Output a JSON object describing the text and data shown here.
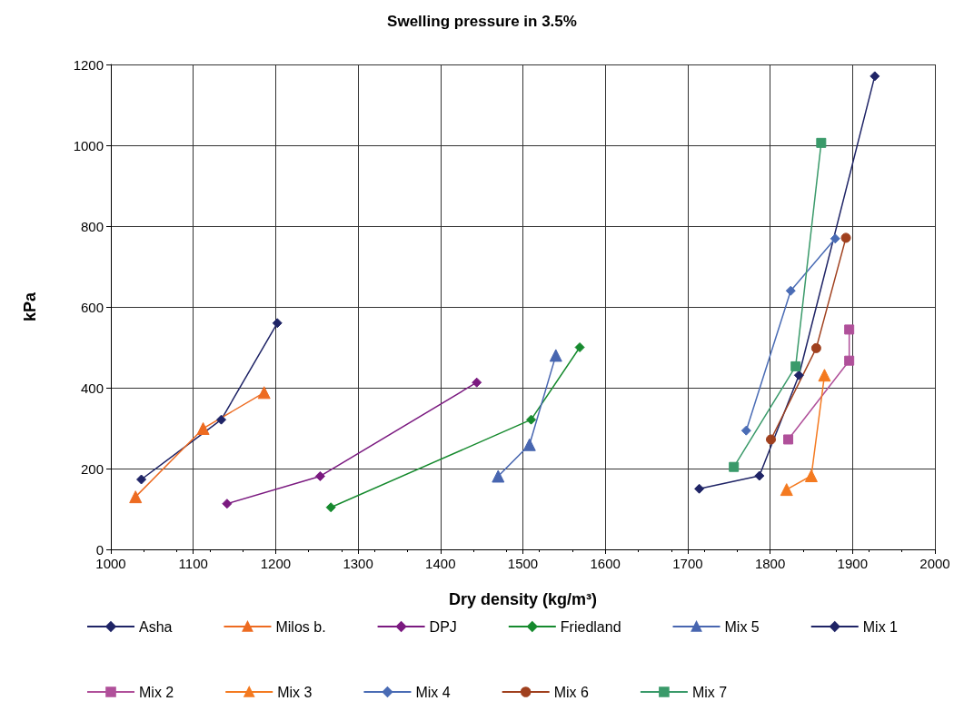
{
  "chart_data": {
    "type": "line",
    "title": "Swelling pressure in 3.5%",
    "xlabel": "Dry density (kg/m³)",
    "ylabel": "kPa",
    "xlim": [
      1000,
      2000
    ],
    "xticks": [
      1000,
      1100,
      1200,
      1300,
      1400,
      1500,
      1600,
      1700,
      1800,
      1900,
      2000
    ],
    "ylim": [
      0,
      1200
    ],
    "yticks": [
      0,
      200,
      400,
      600,
      800,
      1000,
      1200
    ],
    "grid": true,
    "legend": "bottom",
    "line_style": "solid",
    "series": [
      {
        "name": "Asha",
        "color": "#1f2466",
        "marker": "diamond",
        "x": [
          1037,
          1134,
          1202
        ],
        "values": [
          173,
          321,
          560
        ]
      },
      {
        "name": "Milos b.",
        "color": "#ed6b21",
        "marker": "triangle",
        "x": [
          1030,
          1112,
          1186
        ],
        "values": [
          130,
          299,
          388
        ]
      },
      {
        "name": "DPJ",
        "color": "#7b1a80",
        "marker": "diamond",
        "x": [
          1141,
          1254,
          1444
        ],
        "values": [
          113,
          181,
          413
        ]
      },
      {
        "name": "Friedland",
        "color": "#168a2e",
        "marker": "diamond",
        "x": [
          1267,
          1510,
          1569
        ],
        "values": [
          104,
          321,
          500
        ]
      },
      {
        "name": "Mix 5",
        "color": "#4866b0",
        "marker": "triangle",
        "x": [
          1470,
          1508,
          1540
        ],
        "values": [
          181,
          259,
          480
        ]
      },
      {
        "name": "Mix 1",
        "color": "#1f2466",
        "marker": "diamond",
        "x": [
          1714,
          1787,
          1835,
          1927
        ],
        "values": [
          150,
          182,
          431,
          1171
        ]
      },
      {
        "name": "Mix 2",
        "color": "#b0509a",
        "marker": "square",
        "x": [
          1822,
          1896,
          1896
        ],
        "values": [
          272,
          467,
          544
        ]
      },
      {
        "name": "Mix 3",
        "color": "#f47a20",
        "marker": "triangle",
        "x": [
          1820,
          1850,
          1866
        ],
        "values": [
          148,
          182,
          431
        ]
      },
      {
        "name": "Mix 4",
        "color": "#4a6cb5",
        "marker": "diamond",
        "x": [
          1771,
          1825,
          1879
        ],
        "values": [
          294,
          640,
          769
        ]
      },
      {
        "name": "Mix 6",
        "color": "#a0401e",
        "marker": "circle",
        "x": [
          1801,
          1856,
          1892
        ],
        "values": [
          272,
          498,
          771
        ]
      },
      {
        "name": "Mix 7",
        "color": "#3a9a6a",
        "marker": "square",
        "x": [
          1756,
          1831,
          1862
        ],
        "values": [
          204,
          453,
          1006
        ]
      }
    ]
  }
}
